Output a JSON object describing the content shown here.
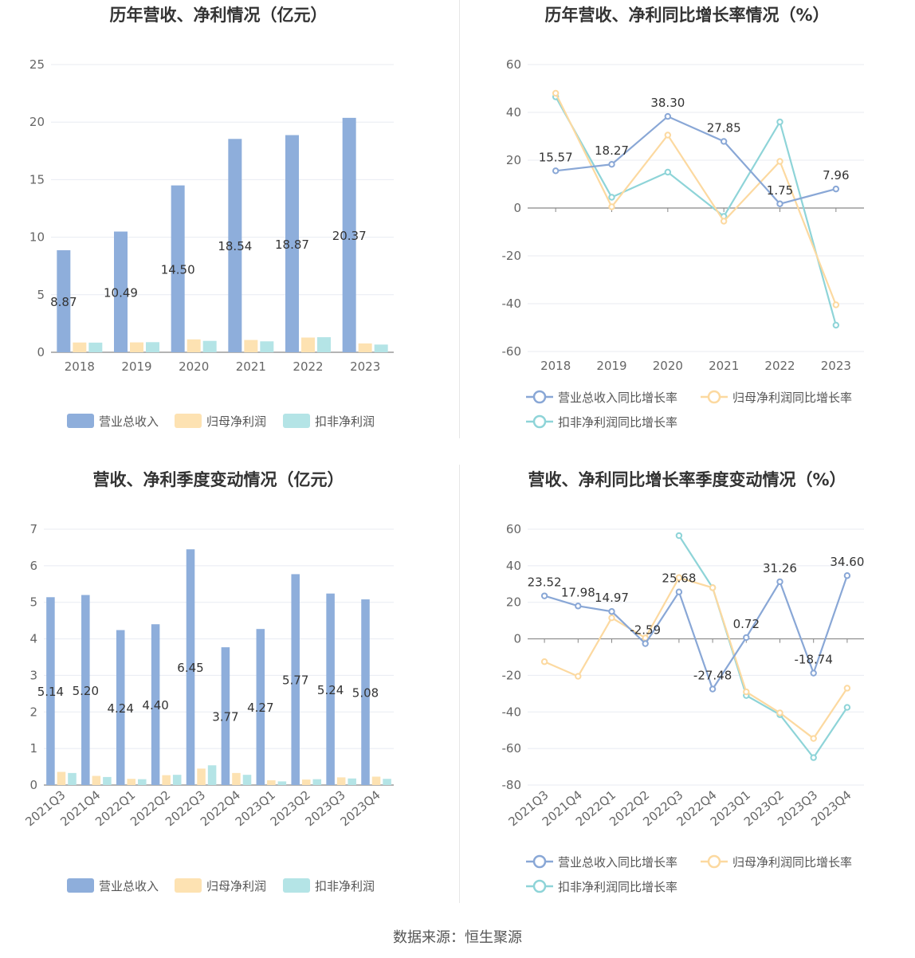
{
  "source_text": "数据来源：恒生聚源",
  "colors": {
    "revenue": "#8eaedb",
    "net_profit": "#fde2b2",
    "deducted_profit": "#b4e4e6",
    "revenue_line": "#89a7d6",
    "net_profit_line": "#fcd9a0",
    "deducted_profit_line": "#8ed4d8",
    "grid": "#e8ebf2",
    "axis": "#888888"
  },
  "chart_data": [
    {
      "type": "bar",
      "title": "历年营收、净利情况（亿元）",
      "categories": [
        "2018",
        "2019",
        "2020",
        "2021",
        "2022",
        "2023"
      ],
      "ylim": [
        0,
        25
      ],
      "yticks": [
        0,
        5,
        10,
        15,
        20,
        25
      ],
      "series": [
        {
          "name": "营业总收入",
          "values": [
            8.87,
            10.49,
            14.5,
            18.54,
            18.87,
            20.37
          ],
          "labels": [
            "8.87",
            "10.49",
            "14.50",
            "18.54",
            "18.87",
            "20.37"
          ]
        },
        {
          "name": "归母净利润",
          "values": [
            0.85,
            0.86,
            1.12,
            1.07,
            1.28,
            0.77
          ]
        },
        {
          "name": "扣非净利润",
          "values": [
            0.84,
            0.88,
            0.99,
            0.95,
            1.31,
            0.67
          ]
        }
      ],
      "legend": "bottom",
      "grid": true
    },
    {
      "type": "line",
      "title": "历年营收、净利同比增长率情况（%）",
      "categories": [
        "2018",
        "2019",
        "2020",
        "2021",
        "2022",
        "2023"
      ],
      "ylim": [
        -60,
        60
      ],
      "yticks": [
        -60,
        -40,
        -20,
        0,
        20,
        40,
        60
      ],
      "series": [
        {
          "name": "营业总收入同比增长率",
          "values": [
            15.57,
            18.27,
            38.3,
            27.85,
            1.75,
            7.96
          ],
          "labels": [
            "15.57",
            "18.27",
            "38.30",
            "27.85",
            "1.75",
            "7.96"
          ]
        },
        {
          "name": "归母净利润同比增长率",
          "values": [
            48.0,
            0.5,
            30.5,
            -5.5,
            19.5,
            -40.5
          ]
        },
        {
          "name": "扣非净利润同比增长率",
          "values": [
            46.5,
            4.5,
            15.0,
            -3.5,
            36.0,
            -49.0
          ]
        }
      ],
      "legend": "bottom",
      "grid": true
    },
    {
      "type": "bar",
      "title": "营收、净利季度变动情况（亿元）",
      "categories": [
        "2021Q3",
        "2021Q4",
        "2022Q1",
        "2022Q2",
        "2022Q3",
        "2022Q4",
        "2023Q1",
        "2023Q2",
        "2023Q3",
        "2023Q4"
      ],
      "ylim": [
        0,
        7
      ],
      "yticks": [
        0,
        1,
        2,
        3,
        4,
        5,
        6,
        7
      ],
      "series": [
        {
          "name": "营业总收入",
          "values": [
            5.14,
            5.2,
            4.24,
            4.4,
            6.45,
            3.77,
            4.27,
            5.77,
            5.24,
            5.08
          ],
          "labels": [
            "5.14",
            "5.20",
            "4.24",
            "4.40",
            "6.45",
            "3.77",
            "4.27",
            "5.77",
            "5.24",
            "5.08"
          ]
        },
        {
          "name": "归母净利润",
          "values": [
            0.36,
            0.25,
            0.17,
            0.27,
            0.45,
            0.33,
            0.13,
            0.15,
            0.21,
            0.23
          ]
        },
        {
          "name": "扣非净利润",
          "values": [
            0.33,
            0.22,
            0.16,
            0.28,
            0.54,
            0.28,
            0.1,
            0.16,
            0.18,
            0.17
          ]
        }
      ],
      "legend": "bottom",
      "grid": true
    },
    {
      "type": "line",
      "title": "营收、净利同比增长率季度变动情况（%）",
      "categories": [
        "2021Q3",
        "2021Q4",
        "2022Q1",
        "2022Q2",
        "2022Q3",
        "2022Q4",
        "2023Q1",
        "2023Q2",
        "2023Q3",
        "2023Q4"
      ],
      "ylim": [
        -80,
        60
      ],
      "yticks": [
        -80,
        -60,
        -40,
        -20,
        0,
        20,
        40,
        60
      ],
      "series": [
        {
          "name": "营业总收入同比增长率",
          "values": [
            23.52,
            17.98,
            14.97,
            -2.59,
            25.68,
            -27.48,
            0.72,
            31.26,
            -18.74,
            34.6
          ],
          "labels": [
            "23.52",
            "17.98",
            "14.97",
            "-2.59",
            "25.68",
            "-27.48",
            "0.72",
            "31.26",
            "-18.74",
            "34.60"
          ]
        },
        {
          "name": "归母净利润同比增长率",
          "values": [
            -12.5,
            -20.5,
            11.5,
            0.5,
            33.5,
            28.0,
            -29.0,
            -40.5,
            -54.5,
            -27.0
          ]
        },
        {
          "name": "扣非净利润同比增长率",
          "values": [
            null,
            null,
            null,
            null,
            56.5,
            28.0,
            -31.0,
            -41.5,
            -65.0,
            -37.5
          ]
        }
      ],
      "legend": "bottom",
      "grid": true
    }
  ]
}
